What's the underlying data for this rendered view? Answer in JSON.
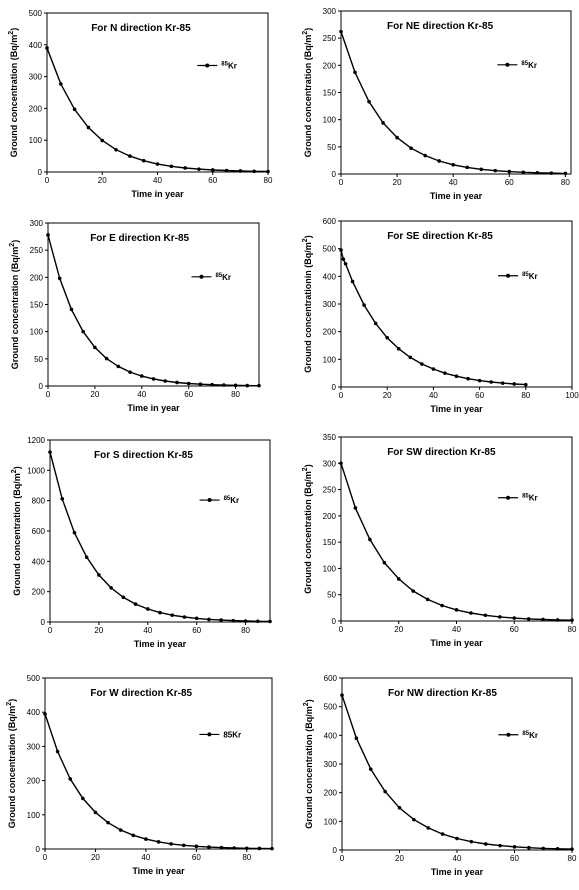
{
  "chart_data": [
    {
      "type": "line",
      "title": "For N direction Kr-85",
      "xlabel": "Time in year",
      "ylabel": "Ground concentration (Bq/m",
      "ylabel_sup": "2",
      "ylabel_end": ")",
      "xlim": [
        0,
        80
      ],
      "ylim": [
        0,
        500
      ],
      "xticks": [
        0,
        20,
        40,
        60,
        80
      ],
      "yticks": [
        0,
        100,
        200,
        300,
        400,
        500
      ],
      "legend": {
        "sup": "85",
        "text": "Kr"
      },
      "series": [
        {
          "x": [
            0,
            5,
            10,
            15,
            20,
            25,
            30,
            35,
            40,
            45,
            50,
            55,
            60,
            65,
            70,
            75,
            80
          ],
          "y": [
            390,
            277,
            197,
            140,
            99,
            70,
            50,
            35.5,
            25,
            17.9,
            12.7,
            9,
            6.4,
            4.6,
            3.2,
            2.3,
            1.6
          ]
        }
      ]
    },
    {
      "type": "line",
      "title": "For NE direction Kr-85",
      "xlabel": "Time in year",
      "ylabel": "Ground concentration (Bq/m",
      "ylabel_sup": "2",
      "ylabel_end": ")",
      "xlim": [
        0,
        82
      ],
      "ylim": [
        0,
        300
      ],
      "xticks": [
        0,
        20,
        40,
        60,
        80
      ],
      "yticks": [
        0,
        50,
        100,
        150,
        200,
        250,
        300
      ],
      "legend": {
        "sup": "85",
        "text": "Kr"
      },
      "series": [
        {
          "x": [
            0,
            5,
            10,
            15,
            20,
            25,
            30,
            35,
            40,
            45,
            50,
            55,
            60,
            65,
            70,
            75,
            80
          ],
          "y": [
            262,
            187,
            133,
            94,
            67,
            47.5,
            34,
            24,
            17,
            12.2,
            8.6,
            6.1,
            4.4,
            3.1,
            2.2,
            1.6,
            1.1
          ]
        }
      ]
    },
    {
      "type": "line",
      "title": "For E direction Kr-85",
      "xlabel": "Time in year",
      "ylabel": "Ground concentration (Bq/m",
      "ylabel_sup": "2",
      "ylabel_end": ")",
      "xlim": [
        0,
        90
      ],
      "ylim": [
        0,
        300
      ],
      "xticks": [
        0,
        20,
        40,
        60,
        80
      ],
      "yticks": [
        0,
        50,
        100,
        150,
        200,
        250,
        300
      ],
      "legend": {
        "sup": "85",
        "text": "Kr"
      },
      "series": [
        {
          "x": [
            0,
            5,
            10,
            15,
            20,
            25,
            30,
            35,
            40,
            45,
            50,
            55,
            60,
            65,
            70,
            75,
            80,
            85,
            90
          ],
          "y": [
            278,
            198,
            141,
            100,
            71,
            50.5,
            36,
            25.5,
            18.2,
            13,
            9.2,
            6.5,
            4.6,
            3.3,
            2.4,
            1.7,
            1.2,
            0.8,
            0.6
          ]
        }
      ]
    },
    {
      "type": "line",
      "title": "For SE direction Kr-85",
      "xlabel": "Time in year",
      "ylabel": "Ground concentrationin (Bq/m",
      "ylabel_sup": "2",
      "ylabel_end": ")",
      "xlim": [
        0,
        100
      ],
      "ylim": [
        0,
        600
      ],
      "xticks": [
        0,
        20,
        40,
        60,
        80,
        100
      ],
      "yticks": [
        0,
        100,
        200,
        300,
        400,
        500,
        600
      ],
      "legend": {
        "sup": "85",
        "text": "Kr"
      },
      "series": [
        {
          "x": [
            0,
            1,
            2,
            5,
            10,
            15,
            20,
            25,
            30,
            35,
            40,
            45,
            50,
            55,
            60,
            65,
            70,
            75,
            80
          ],
          "y": [
            495,
            462,
            445,
            381,
            296,
            230,
            178,
            138,
            107,
            83,
            65,
            50,
            39,
            30,
            23,
            18,
            14,
            11,
            8.5
          ]
        }
      ]
    },
    {
      "type": "line",
      "title": "For S direction Kr-85",
      "xlabel": "Time in year",
      "ylabel": "Ground concentration (Bq/m",
      "ylabel_sup": "2",
      "ylabel_end": ")",
      "xlim": [
        0,
        90
      ],
      "ylim": [
        0,
        1200
      ],
      "xticks": [
        0,
        20,
        40,
        60,
        80
      ],
      "yticks": [
        0,
        200,
        400,
        600,
        800,
        1000,
        1200
      ],
      "legend": {
        "sup": "85",
        "text": "Kr"
      },
      "series": [
        {
          "x": [
            0,
            5,
            10,
            15,
            20,
            25,
            30,
            35,
            40,
            45,
            50,
            55,
            60,
            65,
            70,
            75,
            80,
            85,
            90
          ],
          "y": [
            1120,
            812,
            589,
            427,
            310,
            225,
            163,
            118,
            86,
            62,
            45,
            33,
            24,
            17,
            12.5,
            9,
            6.6,
            4.8,
            3.5
          ]
        }
      ]
    },
    {
      "type": "line",
      "title": "For SW direction Kr-85",
      "xlabel": "Time in year",
      "ylabel": "Ground concentration (Bq/m",
      "ylabel_sup": "2",
      "ylabel_end": ")",
      "xlim": [
        0,
        80
      ],
      "ylim": [
        0,
        350
      ],
      "xticks": [
        0,
        20,
        40,
        60,
        80
      ],
      "yticks": [
        0,
        50,
        100,
        150,
        200,
        250,
        300,
        350
      ],
      "legend": {
        "sup": "85",
        "text": "Kr"
      },
      "series": [
        {
          "x": [
            0,
            5,
            10,
            15,
            20,
            25,
            30,
            35,
            40,
            45,
            50,
            55,
            60,
            65,
            70,
            75,
            80
          ],
          "y": [
            300,
            215,
            155,
            111,
            80,
            57,
            41,
            29.5,
            21.2,
            15.2,
            10.9,
            7.8,
            5.6,
            4,
            2.9,
            2.1,
            1.5
          ]
        }
      ]
    },
    {
      "type": "line",
      "title": "For W direction Kr-85",
      "xlabel": "Time in year",
      "ylabel": "Ground concentration (Bq/m",
      "ylabel_sup": "2",
      "ylabel_end": ")",
      "xlim": [
        0,
        90
      ],
      "ylim": [
        0,
        500
      ],
      "xticks": [
        0,
        20,
        40,
        60,
        80
      ],
      "yticks": [
        0,
        100,
        200,
        300,
        400,
        500
      ],
      "legend": {
        "sup": "",
        "text": "85Kr"
      },
      "series": [
        {
          "x": [
            0,
            5,
            10,
            15,
            20,
            25,
            30,
            35,
            40,
            45,
            50,
            55,
            60,
            65,
            70,
            75,
            80,
            85,
            90
          ],
          "y": [
            395,
            285,
            205,
            148,
            107,
            77,
            55.5,
            40,
            29,
            21,
            15,
            10.8,
            7.8,
            5.6,
            4,
            2.9,
            2.1,
            1.5,
            1.1
          ]
        }
      ]
    },
    {
      "type": "line",
      "title": "For NW direction Kr-85",
      "xlabel": "Time in year",
      "ylabel": "Ground concentration (Bq/m",
      "ylabel_sup": "2",
      "ylabel_end": ")",
      "xlim": [
        0,
        80
      ],
      "ylim": [
        0,
        600
      ],
      "xticks": [
        0,
        20,
        40,
        60,
        80
      ],
      "yticks": [
        0,
        100,
        200,
        300,
        400,
        500,
        600
      ],
      "legend": {
        "sup": "85",
        "text": "Kr"
      },
      "series": [
        {
          "x": [
            0,
            5,
            10,
            15,
            20,
            25,
            30,
            35,
            40,
            45,
            50,
            55,
            60,
            65,
            70,
            75,
            80
          ],
          "y": [
            540,
            390,
            282,
            204,
            147,
            106,
            77,
            55.5,
            40,
            29,
            21,
            15.2,
            11,
            7.9,
            5.7,
            4.1,
            3
          ]
        }
      ]
    }
  ]
}
